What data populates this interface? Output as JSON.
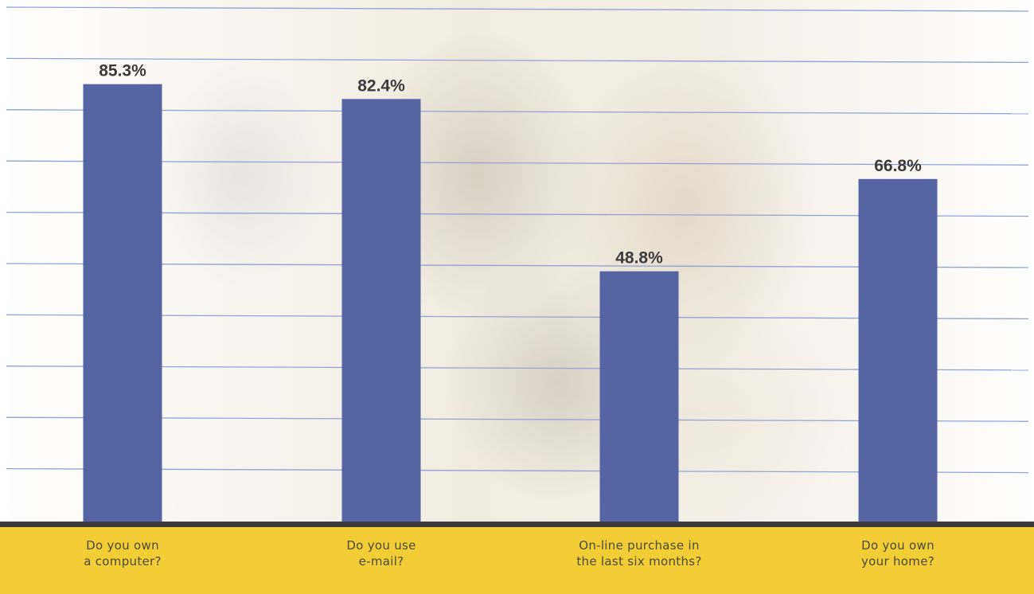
{
  "chart_data": {
    "type": "bar",
    "categories": [
      [
        "Do you own",
        "a computer?"
      ],
      [
        "Do you use",
        "e-mail?"
      ],
      [
        "On-line purchase in",
        "the last six months?"
      ],
      [
        "Do you own",
        "your home?"
      ]
    ],
    "values": [
      85.3,
      82.4,
      48.8,
      66.8
    ],
    "value_labels": [
      "85.3%",
      "82.4%",
      "48.8%",
      "66.8%"
    ],
    "ylim": [
      0,
      100
    ],
    "grid": true,
    "colors": {
      "bar": "#5565a4",
      "grid": "#8fa3d8",
      "baseline_strip": "#f2cd36",
      "baseline_rule": "#3a3a3a"
    }
  }
}
